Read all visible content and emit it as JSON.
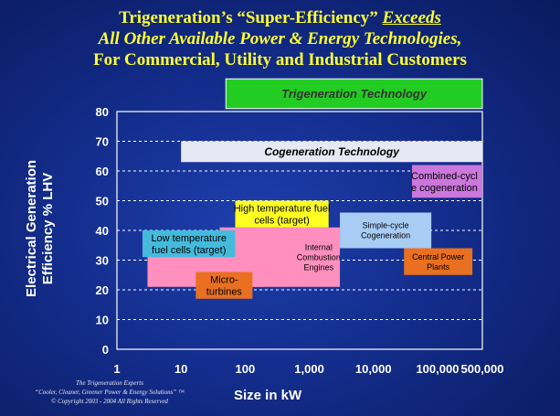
{
  "title": {
    "line1_a": "Trigeneration’s “Super-Efficiency” ",
    "line1_b": "Exceeds",
    "line2": "All Other Available Power & Energy Technologies,",
    "line3": "For Commercial, Utility and Industrial Customers"
  },
  "footer": {
    "line1": "The Trigeneration Experts",
    "line2": "“Cooler, Cleaner, Greener Power & Energy Solutions” ™",
    "line3": "© Copyright 2003 - 2004  All Rights Reserved"
  },
  "chart_data": {
    "type": "range-boxes",
    "xlabel": "Size in kW",
    "ylabel": "Electrical Generation Efficiency % LHV",
    "x_scale": "log",
    "xlim": [
      1,
      500000
    ],
    "ylim": [
      0,
      80
    ],
    "x_ticks": [
      1,
      10,
      100,
      1000,
      10000,
      100000,
      500000
    ],
    "x_tick_labels": [
      "1",
      "10",
      "100",
      "1,000",
      "10,000",
      "100,000",
      "500,000"
    ],
    "y_ticks": [
      0,
      10,
      20,
      30,
      40,
      50,
      60,
      70,
      80
    ],
    "grid": "horizontal dashed",
    "regions": [
      {
        "label": "Trigeneration Technology",
        "x": [
          50,
          500000
        ],
        "y": [
          81,
          91
        ],
        "color": "#22cc22",
        "text_color": "#333333",
        "italic": true,
        "bold": true
      },
      {
        "label": "Cogeneration Technology",
        "x": [
          10,
          500000
        ],
        "y": [
          63,
          70
        ],
        "color": "#e8e8f4",
        "text_color": "#000000",
        "italic": true,
        "bold": true
      },
      {
        "label": "Combined-cycle cogeneration",
        "x": [
          40000,
          500000
        ],
        "y": [
          51,
          62
        ],
        "color": "#cc77dd",
        "text_color": "#000000",
        "italic": false,
        "bold": false
      },
      {
        "label": "Simple-cycle Cogeneration",
        "x": [
          3000,
          80000
        ],
        "y": [
          34,
          46
        ],
        "color": "#a8ccf4",
        "text_color": "#000000",
        "italic": false,
        "bold": false
      },
      {
        "label": "Internal Combustion Engines",
        "x": [
          40,
          3000
        ],
        "y": [
          21,
          41
        ],
        "color": "#ff8fbf",
        "text_color": "#000000",
        "italic": false,
        "bold": false
      },
      {
        "label": "Low temperature fuel cells (target)",
        "x": [
          3,
          200
        ],
        "y": [
          21,
          40
        ],
        "color": "#ff8fbf",
        "text_color": "#000000",
        "italic": false,
        "bold": false,
        "z": 0
      },
      {
        "label": "Low temperature fuel cells (target)",
        "x": [
          2.5,
          70
        ],
        "y": [
          31,
          40
        ],
        "color": "#44bbdd",
        "text_color": "#000000",
        "italic": false,
        "bold": false
      },
      {
        "label": "High temperature fuel cells (target)",
        "x": [
          70,
          2000
        ],
        "y": [
          41,
          50
        ],
        "color": "#ffff22",
        "text_color": "#000000",
        "italic": false,
        "bold": false
      },
      {
        "label": "Micro-turbines",
        "x": [
          17,
          130
        ],
        "y": [
          17,
          26
        ],
        "color": "#e87020",
        "text_color": "#000000",
        "italic": false,
        "bold": false
      },
      {
        "label": "Central Power Plants",
        "x": [
          30000,
          350000
        ],
        "y": [
          25,
          34
        ],
        "color": "#e87020",
        "text_color": "#000000",
        "italic": false,
        "bold": false
      }
    ]
  }
}
